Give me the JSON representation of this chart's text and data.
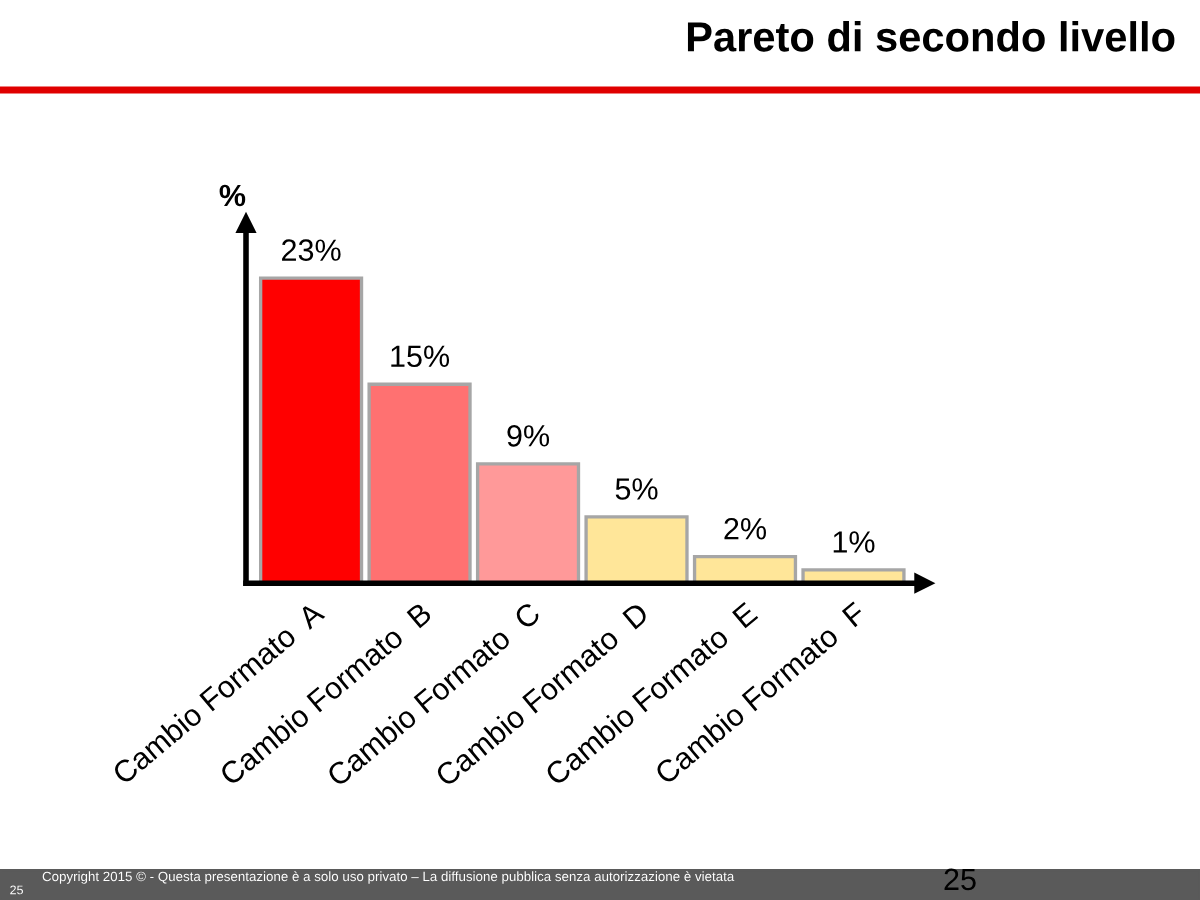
{
  "chart_data": {
    "type": "bar",
    "title": "Pareto di secondo livello",
    "ylabel": "%",
    "categories": [
      "Cambio Formato  A",
      "Cambio Formato  B",
      "Cambio Formato  C",
      "Cambio Formato  D",
      "Cambio Formato  E",
      "Cambio Formato  F"
    ],
    "values": [
      23,
      15,
      9,
      5,
      2,
      1
    ],
    "colors": [
      "#ff0000",
      "#ff7171",
      "#ff9999",
      "#ffe699",
      "#ffe699",
      "#ffe699"
    ],
    "value_labels": [
      "23%",
      "15%",
      "9%",
      "5%",
      "2%",
      "1%"
    ],
    "relative": false,
    "grid": false,
    "legend": false,
    "annotations": [
      "Copyright 2015 © - Questa presentazione è a solo uso privato – La diffusione pubblica senza autorizzazione è vietata",
      "25",
      "25"
    ]
  }
}
